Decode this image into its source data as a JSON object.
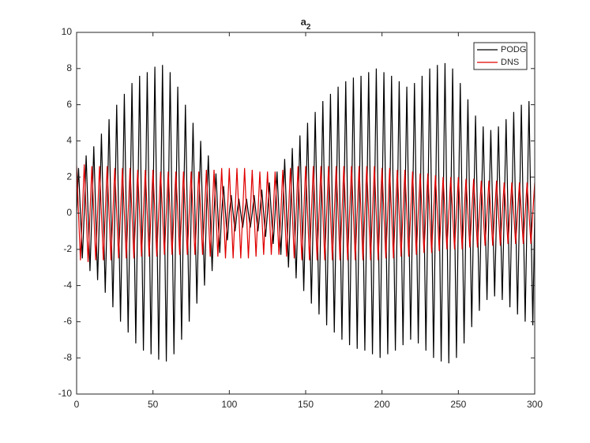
{
  "chart_data": {
    "type": "line",
    "title": {
      "text": "a",
      "subscript": "2"
    },
    "xlim": [
      0,
      300
    ],
    "ylim": [
      -10,
      10
    ],
    "xticks": [
      0,
      50,
      100,
      150,
      200,
      250,
      300
    ],
    "yticks": [
      -10,
      -8,
      -6,
      -4,
      -2,
      0,
      2,
      4,
      6,
      8,
      10
    ],
    "grid": false,
    "legend": "top-right",
    "x": [
      0,
      1.25,
      2.5,
      3.75,
      5,
      6.25,
      7.5,
      8.75,
      10,
      11.25,
      12.5,
      13.75,
      15,
      16.25,
      17.5,
      18.75,
      20,
      21.25,
      22.5,
      23.75,
      25,
      26.25,
      27.5,
      28.75,
      30,
      31.25,
      32.5,
      33.75,
      35,
      36.25,
      37.5,
      38.75,
      40,
      41.25,
      42.5,
      43.75,
      45,
      46.25,
      47.5,
      48.75,
      50,
      51.25,
      52.5,
      53.75,
      55,
      56.25,
      57.5,
      58.75,
      60,
      61.25,
      62.5,
      63.75,
      65,
      66.25,
      67.5,
      68.75,
      70,
      71.25,
      72.5,
      73.75,
      75,
      76.25,
      77.5,
      78.75,
      80,
      81.25,
      82.5,
      83.75,
      85,
      86.25,
      87.5,
      88.75,
      90,
      91.25,
      92.5,
      93.75,
      95,
      96.25,
      97.5,
      98.75,
      100,
      101.25,
      102.5,
      103.75,
      105,
      106.25,
      107.5,
      108.75,
      110,
      111.25,
      112.5,
      113.75,
      115,
      116.25,
      117.5,
      118.75,
      120,
      121.25,
      122.5,
      123.75,
      125,
      126.25,
      127.5,
      128.75,
      130,
      131.25,
      132.5,
      133.75,
      135,
      136.25,
      137.5,
      138.75,
      140,
      141.25,
      142.5,
      143.75,
      145,
      146.25,
      147.5,
      148.75,
      150,
      151.25,
      152.5,
      153.75,
      155,
      156.25,
      157.5,
      158.75,
      160,
      161.25,
      162.5,
      163.75,
      165,
      166.25,
      167.5,
      168.75,
      170,
      171.25,
      172.5,
      173.75,
      175,
      176.25,
      177.5,
      178.75,
      180,
      181.25,
      182.5,
      183.75,
      185,
      186.25,
      187.5,
      188.75,
      190,
      191.25,
      192.5,
      193.75,
      195,
      196.25,
      197.5,
      198.75,
      200,
      201.25,
      202.5,
      203.75,
      205,
      206.25,
      207.5,
      208.75,
      210,
      211.25,
      212.5,
      213.75,
      215,
      216.25,
      217.5,
      218.75,
      220,
      221.25,
      222.5,
      223.75,
      225,
      226.25,
      227.5,
      228.75,
      230,
      231.25,
      232.5,
      233.75,
      235,
      236.25,
      237.5,
      238.75,
      240,
      241.25,
      242.5,
      243.75,
      245,
      246.25,
      247.5,
      248.75,
      250,
      251.25,
      252.5,
      253.75,
      255,
      256.25,
      257.5,
      258.75,
      260,
      261.25,
      262.5,
      263.75,
      265,
      266.25,
      267.5,
      268.75,
      270,
      271.25,
      272.5,
      273.75,
      275,
      276.25,
      277.5,
      278.75,
      280,
      281.25,
      282.5,
      283.75,
      285,
      286.25,
      287.5,
      288.75,
      290,
      291.25,
      292.5,
      293.75,
      295,
      296.25,
      297.5,
      298.75,
      300
    ],
    "series": [
      {
        "name": "PODG",
        "color": "#000000",
        "values": [
          0,
          2.5,
          0,
          -2.5,
          0,
          3.2,
          0,
          -3.2,
          0,
          3.7,
          0,
          -3.7,
          0,
          4.4,
          0,
          -4.4,
          0,
          5.2,
          0,
          -5.2,
          0,
          6,
          0,
          -6,
          0,
          6.6,
          0,
          -6.6,
          0,
          7.2,
          0,
          -7.2,
          0,
          7.6,
          0,
          -7.6,
          0,
          7.8,
          0,
          -7.8,
          0,
          8.1,
          0,
          -8.1,
          0,
          8.2,
          0,
          -8.2,
          0,
          7.8,
          0,
          -7.8,
          0,
          7,
          0,
          -7,
          0,
          6,
          0,
          -6,
          0,
          5,
          0,
          -5,
          0,
          4,
          0,
          -4,
          0,
          3.2,
          0,
          -3.2,
          0,
          2.2,
          0,
          -2.2,
          0,
          1.5,
          0,
          -1.5,
          0,
          1,
          0,
          -1,
          0,
          0.8,
          0,
          -0.8,
          0,
          0.8,
          0,
          -0.8,
          0,
          1,
          0,
          -1,
          0,
          1.3,
          0,
          -1.3,
          0,
          1.7,
          0,
          -1.7,
          0,
          2.3,
          0,
          -2.3,
          0,
          3,
          0,
          -3,
          0,
          3.6,
          0,
          -3.6,
          0,
          4.3,
          0,
          -4.3,
          0,
          5,
          0,
          -5,
          0,
          5.6,
          0,
          -5.6,
          0,
          6.2,
          0,
          -6.2,
          0,
          6.6,
          0,
          -6.6,
          0,
          7,
          0,
          -7,
          0,
          7.3,
          0,
          -7.3,
          0,
          7.5,
          0,
          -7.5,
          0,
          7.6,
          0,
          -7.6,
          0,
          7.8,
          0,
          -7.8,
          0,
          8,
          0,
          -8,
          0,
          7.8,
          0,
          -7.8,
          0,
          7.6,
          0,
          -7.6,
          0,
          7.3,
          0,
          -7.3,
          0,
          7,
          0,
          -7,
          0,
          7.2,
          0,
          -7.2,
          0,
          7.6,
          0,
          -7.6,
          0,
          8,
          0,
          -8,
          0,
          8.2,
          0,
          -8.2,
          0,
          8.3,
          0,
          -8.3,
          0,
          8,
          0,
          -8,
          0,
          7.2,
          0,
          -7.2,
          0,
          6.3,
          0,
          -6.3,
          0,
          5.4,
          0,
          -5.4,
          0,
          4.8,
          0,
          -4.8,
          0,
          4.6,
          0,
          -4.6,
          0,
          4.8,
          0,
          -4.8,
          0,
          5.2,
          0,
          -5.2,
          0,
          5.6,
          0,
          -5.6,
          0,
          6,
          0,
          -6,
          0,
          6.2,
          0,
          -6.2,
          0
        ]
      },
      {
        "name": "DNS",
        "color": "#e00000",
        "values": [
          2.6,
          0,
          -2.6,
          0,
          2.7,
          0,
          -2.7,
          0,
          2.6,
          0,
          -2.6,
          0,
          2.6,
          0,
          -2.6,
          0,
          2.6,
          0,
          -2.6,
          0,
          2.5,
          0,
          -2.5,
          0,
          2.5,
          0,
          -2.5,
          0,
          2.5,
          0,
          -2.5,
          0,
          2.4,
          0,
          -2.4,
          0,
          2.4,
          0,
          -2.4,
          0,
          2.4,
          0,
          -2.4,
          0,
          2.3,
          0,
          -2.3,
          0,
          2.3,
          0,
          -2.3,
          0,
          2.3,
          0,
          -2.3,
          0,
          2.3,
          0,
          -2.3,
          0,
          2.3,
          0,
          -2.3,
          0,
          2.3,
          0,
          -2.3,
          0,
          2.4,
          0,
          -2.4,
          0,
          2.4,
          0,
          -2.4,
          0,
          2.5,
          0,
          -2.5,
          0,
          2.5,
          0,
          -2.5,
          0,
          2.5,
          0,
          -2.5,
          0,
          2.5,
          0,
          -2.5,
          0,
          2.4,
          0,
          -2.4,
          0,
          2.3,
          0,
          -2.3,
          0,
          2.3,
          0,
          -2.3,
          0,
          2.3,
          0,
          -2.3,
          0,
          2.4,
          0,
          -2.4,
          0,
          2.5,
          0,
          -2.5,
          0,
          2.6,
          0,
          -2.6,
          0,
          2.6,
          0,
          -2.6,
          0,
          2.6,
          0,
          -2.6,
          0,
          2.6,
          0,
          -2.6,
          0,
          2.6,
          0,
          -2.6,
          0,
          2.6,
          0,
          -2.6,
          0,
          2.6,
          0,
          -2.6,
          0,
          2.6,
          0,
          -2.6,
          0,
          2.6,
          0,
          -2.6,
          0,
          2.6,
          0,
          -2.6,
          0,
          2.6,
          0,
          -2.6,
          0,
          2.5,
          0,
          -2.5,
          0,
          2.5,
          0,
          -2.5,
          0,
          2.4,
          0,
          -2.4,
          0,
          2.4,
          0,
          -2.4,
          0,
          2.3,
          0,
          -2.3,
          0,
          2.2,
          0,
          -2.2,
          0,
          2.2,
          0,
          -2.2,
          0,
          2.1,
          0,
          -2.1,
          0,
          2,
          0,
          -2,
          0,
          2,
          0,
          -2,
          0,
          2,
          0,
          -2,
          0,
          1.9,
          0,
          -1.9,
          0,
          1.9,
          0,
          -1.9,
          0,
          1.8,
          0,
          -1.8,
          0,
          1.8,
          0,
          -1.8,
          0,
          1.8,
          0,
          -1.8,
          0,
          1.7,
          0,
          -1.7,
          0,
          1.7,
          0,
          -1.7,
          0,
          1.7,
          0,
          -1.7,
          0,
          1.7,
          0,
          -1.7,
          0,
          1.7
        ]
      }
    ]
  }
}
